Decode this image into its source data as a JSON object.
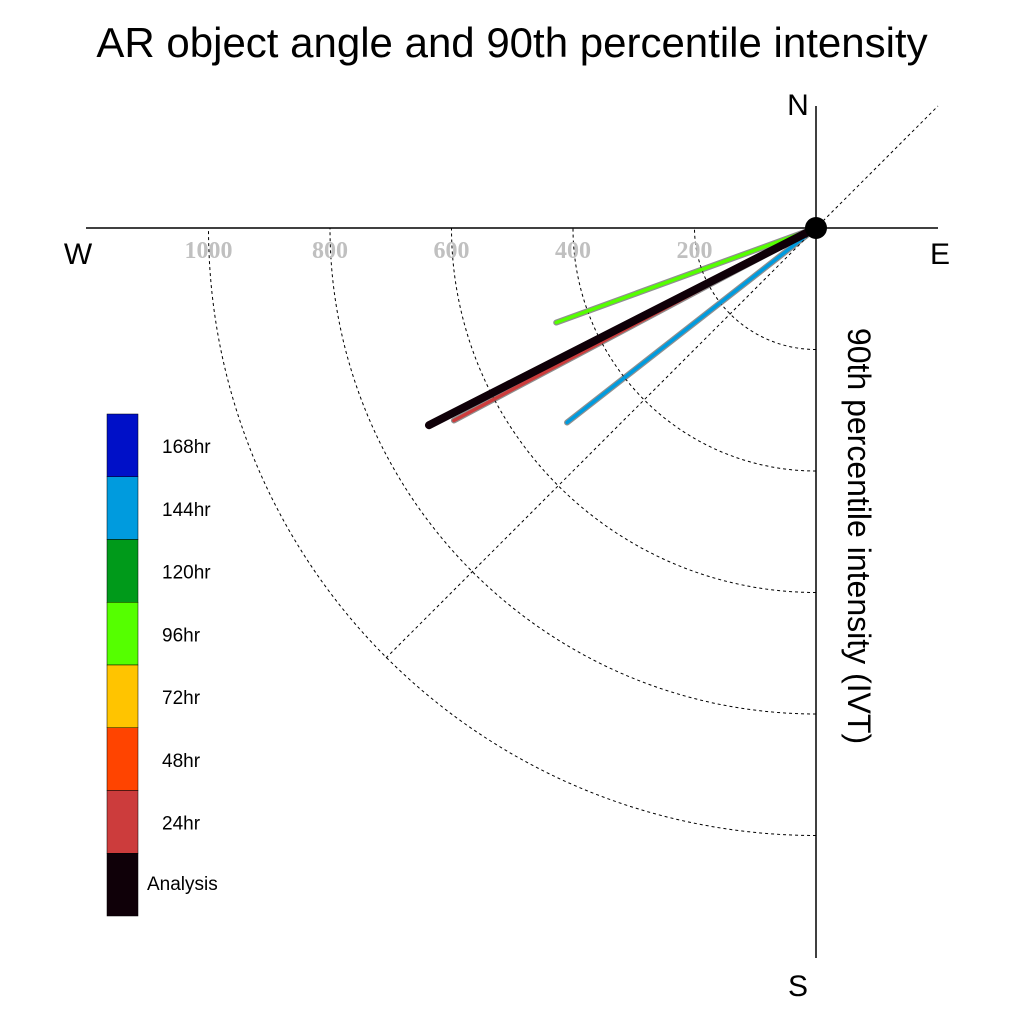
{
  "chart_data": {
    "type": "line",
    "title": "AR object angle and 90th percentile intensity",
    "ylabel": "90th percentile intensity (IVT)",
    "compass": {
      "north": "N",
      "south": "S",
      "east": "E",
      "west": "W"
    },
    "radial_ticks": [
      {
        "value": 200,
        "label": "200"
      },
      {
        "value": 400,
        "label": "400"
      },
      {
        "value": 600,
        "label": "600"
      },
      {
        "value": 800,
        "label": "800"
      },
      {
        "value": 1000,
        "label": "1000"
      }
    ],
    "radial_max": 1200,
    "legend": [
      {
        "label": "168hr",
        "color": "#0010c8"
      },
      {
        "label": "144hr",
        "color": "#009bde"
      },
      {
        "label": "120hr",
        "color": "#009a1a"
      },
      {
        "label": "96hr",
        "color": "#55ff00"
      },
      {
        "label": "72hr",
        "color": "#ffc400"
      },
      {
        "label": "48hr",
        "color": "#ff4400"
      },
      {
        "label": "24hr",
        "color": "#cc3c3c"
      },
      {
        "label": "Analysis",
        "color": "#0f0008"
      }
    ],
    "series": [
      {
        "legend_index": 3,
        "angle_deg": 70,
        "intensity": 455
      },
      {
        "legend_index": 1,
        "angle_deg": 52,
        "intensity": 520
      },
      {
        "legend_index": 6,
        "angle_deg": 62,
        "intensity": 675
      },
      {
        "legend_index": 7,
        "angle_deg": 63,
        "intensity": 715
      }
    ]
  }
}
